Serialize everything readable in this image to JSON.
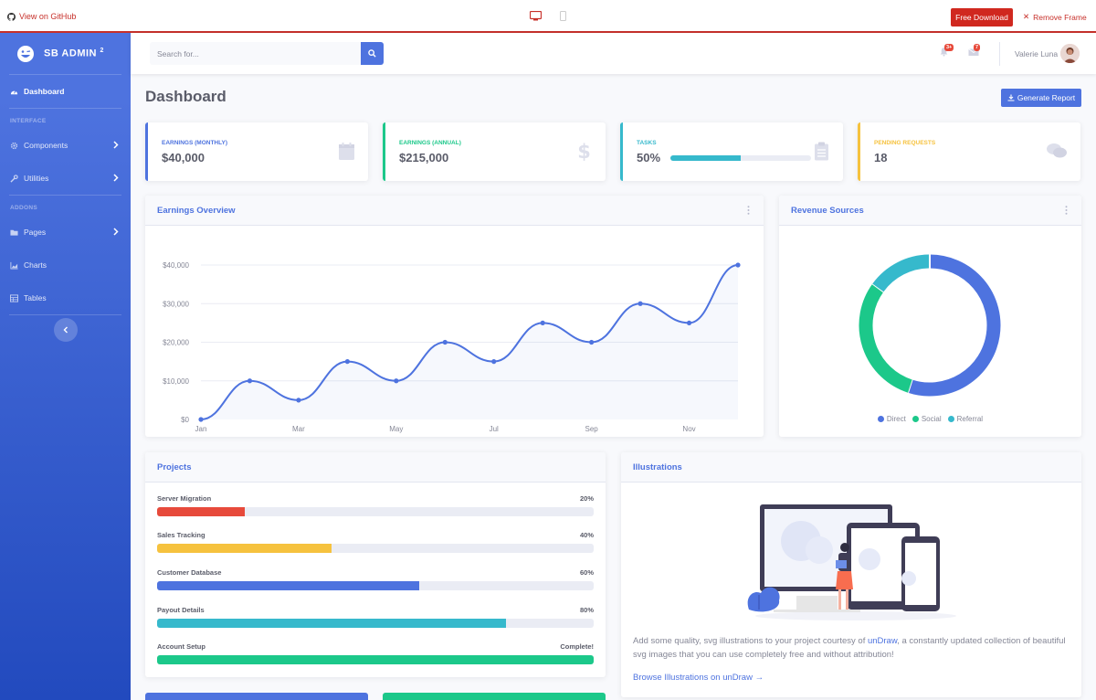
{
  "frame": {
    "github_label": "View on GitHub",
    "download_label": "Free Download",
    "remove_label": "Remove Frame"
  },
  "sidebar": {
    "brand": "SB ADMIN",
    "brand_sup": "2",
    "dashboard": "Dashboard",
    "heading_interface": "INTERFACE",
    "components": "Components",
    "utilities": "Utilities",
    "heading_addons": "ADDONS",
    "pages": "Pages",
    "charts": "Charts",
    "tables": "Tables"
  },
  "topbar": {
    "search_placeholder": "Search for...",
    "alerts_badge": "3+",
    "messages_badge": "7",
    "user_name": "Valerie Luna"
  },
  "page": {
    "title": "Dashboard",
    "generate_report": "Generate Report"
  },
  "stats": [
    {
      "label": "Earnings (Monthly)",
      "value": "$40,000",
      "color": "#4e73df"
    },
    {
      "label": "Earnings (Annual)",
      "value": "$215,000",
      "color": "#1cc88a"
    },
    {
      "label": "Tasks",
      "value": "50%",
      "progress": 50,
      "color": "#36b9cc"
    },
    {
      "label": "Pending Requests",
      "value": "18",
      "color": "#f6c23e"
    }
  ],
  "earnings_overview": {
    "title": "Earnings Overview"
  },
  "revenue_sources": {
    "title": "Revenue Sources",
    "legend": [
      {
        "name": "Direct",
        "color": "#4e73df"
      },
      {
        "name": "Social",
        "color": "#1cc88a"
      },
      {
        "name": "Referral",
        "color": "#36b9cc"
      }
    ]
  },
  "projects": {
    "title": "Projects",
    "items": [
      {
        "name": "Server Migration",
        "value": "20%",
        "percent": 20,
        "color": "#e74a3b"
      },
      {
        "name": "Sales Tracking",
        "value": "40%",
        "percent": 40,
        "color": "#f6c23e"
      },
      {
        "name": "Customer Database",
        "value": "60%",
        "percent": 60,
        "color": "#4e73df"
      },
      {
        "name": "Payout Details",
        "value": "80%",
        "percent": 80,
        "color": "#36b9cc"
      },
      {
        "name": "Account Setup",
        "value": "Complete!",
        "percent": 100,
        "color": "#1cc88a"
      }
    ]
  },
  "illustrations": {
    "title": "Illustrations",
    "text_before": "Add some quality, svg illustrations to your project courtesy of ",
    "link_undraw": "unDraw",
    "text_after": ", a constantly updated collection of beautiful svg images that you can use completely free and without attribution!",
    "browse_link": "Browse Illustrations on unDraw →"
  },
  "chart_data": [
    {
      "type": "area",
      "x": [
        "Jan",
        "Feb",
        "Mar",
        "Apr",
        "May",
        "Jun",
        "Jul",
        "Aug",
        "Sep",
        "Oct",
        "Nov",
        "Dec"
      ],
      "x_tick_labels": [
        "Jan",
        "Mar",
        "May",
        "Jul",
        "Sep",
        "Nov"
      ],
      "series": [
        {
          "values": [
            0,
            10000,
            5000,
            15000,
            10000,
            20000,
            15000,
            25000,
            20000,
            30000,
            25000,
            40000
          ],
          "color": "#4e73df"
        }
      ],
      "y_tick_labels": [
        "$0",
        "$10,000",
        "$20,000",
        "$30,000",
        "$40,000"
      ],
      "ylim": [
        0,
        40000
      ],
      "grid": true
    },
    {
      "type": "pie",
      "categories": [
        "Direct",
        "Social",
        "Referral"
      ],
      "values": [
        55,
        30,
        15
      ],
      "colors": [
        "#4e73df",
        "#1cc88a",
        "#36b9cc"
      ],
      "legend": "bottom"
    }
  ]
}
